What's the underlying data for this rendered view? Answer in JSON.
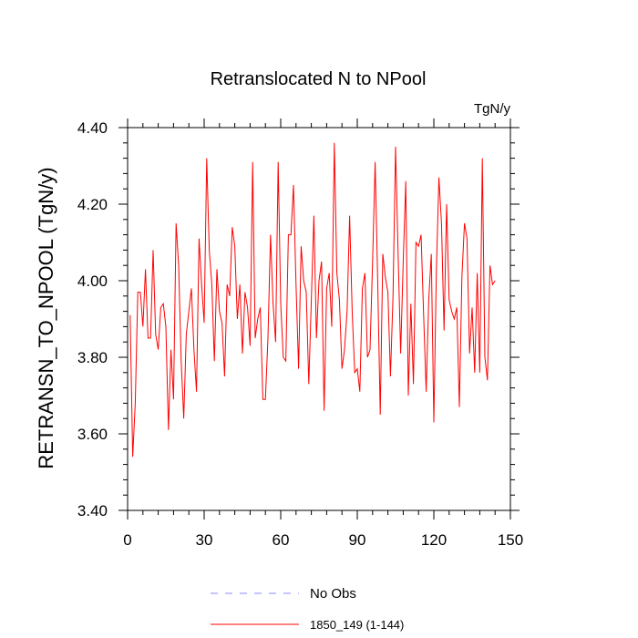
{
  "chart_data": {
    "type": "line",
    "title": "Retranslocated N to NPool",
    "units": "TgN/y",
    "ylabel": "RETRANSN_TO_NPOOL  (TgN/y)",
    "xlabel": "",
    "xlim": [
      0,
      150
    ],
    "ylim": [
      3.4,
      4.4
    ],
    "xticks": [
      0,
      30,
      60,
      90,
      120,
      150
    ],
    "xtick_labels": [
      "0",
      "30",
      "60",
      "90",
      "120",
      "150"
    ],
    "yticks": [
      3.4,
      3.6,
      3.8,
      4.0,
      4.2,
      4.4
    ],
    "ytick_labels": [
      "3.40",
      "3.60",
      "3.80",
      "4.00",
      "4.20",
      "4.40"
    ],
    "series": [
      {
        "name": "1850_149 (1-144)",
        "color": "#ff0000",
        "x": [
          1,
          2,
          3,
          4,
          5,
          6,
          7,
          8,
          9,
          10,
          11,
          12,
          13,
          14,
          15,
          16,
          17,
          18,
          19,
          20,
          21,
          22,
          23,
          24,
          25,
          26,
          27,
          28,
          29,
          30,
          31,
          32,
          33,
          34,
          35,
          36,
          37,
          38,
          39,
          40,
          41,
          42,
          43,
          44,
          45,
          46,
          47,
          48,
          49,
          50,
          51,
          52,
          53,
          54,
          55,
          56,
          57,
          58,
          59,
          60,
          61,
          62,
          63,
          64,
          65,
          66,
          67,
          68,
          69,
          70,
          71,
          72,
          73,
          74,
          75,
          76,
          77,
          78,
          79,
          80,
          81,
          82,
          83,
          84,
          85,
          86,
          87,
          88,
          89,
          90,
          91,
          92,
          93,
          94,
          95,
          96,
          97,
          98,
          99,
          100,
          101,
          102,
          103,
          104,
          105,
          106,
          107,
          108,
          109,
          110,
          111,
          112,
          113,
          114,
          115,
          116,
          117,
          118,
          119,
          120,
          121,
          122,
          123,
          124,
          125,
          126,
          127,
          128,
          129,
          130,
          131,
          132,
          133,
          134,
          135,
          136,
          137,
          138,
          139,
          140,
          141,
          142,
          143,
          144
        ],
        "values": [
          3.91,
          3.54,
          3.68,
          3.97,
          3.97,
          3.88,
          4.03,
          3.85,
          3.85,
          4.08,
          3.86,
          3.82,
          3.93,
          3.94,
          3.88,
          3.61,
          3.82,
          3.69,
          4.15,
          4.04,
          3.79,
          3.64,
          3.86,
          3.92,
          3.98,
          3.82,
          3.71,
          4.11,
          3.99,
          3.89,
          4.32,
          4.08,
          3.99,
          3.79,
          4.03,
          3.92,
          3.89,
          3.75,
          3.99,
          3.96,
          4.14,
          4.09,
          3.9,
          3.99,
          3.81,
          3.97,
          3.93,
          3.83,
          4.31,
          3.85,
          3.9,
          3.93,
          3.69,
          3.69,
          3.85,
          4.12,
          3.94,
          3.84,
          4.31,
          3.94,
          3.8,
          3.79,
          4.12,
          4.12,
          4.25,
          3.99,
          3.77,
          4.09,
          4.0,
          3.97,
          3.73,
          3.95,
          4.17,
          3.85,
          4.0,
          4.05,
          3.66,
          3.98,
          4.02,
          3.88,
          4.36,
          4.02,
          3.95,
          3.77,
          3.82,
          3.92,
          4.17,
          3.92,
          3.76,
          3.77,
          3.71,
          3.98,
          4.02,
          3.8,
          3.82,
          4.05,
          4.31,
          4.0,
          3.65,
          4.07,
          4.01,
          3.97,
          3.75,
          3.96,
          4.35,
          4.07,
          3.81,
          4.05,
          4.26,
          3.7,
          3.94,
          3.73,
          4.1,
          4.09,
          4.12,
          3.91,
          3.71,
          3.95,
          4.07,
          3.63,
          4.03,
          4.27,
          4.15,
          3.87,
          4.2,
          3.95,
          3.92,
          3.9,
          3.93,
          3.67,
          4.01,
          4.15,
          4.11,
          3.81,
          3.93,
          3.76,
          4.02,
          3.76,
          4.32,
          3.8,
          3.74,
          4.04,
          3.99,
          4.0
        ]
      }
    ],
    "legend": {
      "position": "bottom",
      "entries": [
        {
          "label": "No Obs",
          "style": "dashed",
          "color": "#8888ff"
        },
        {
          "label": "1850_149 (1-144)",
          "style": "solid",
          "color": "#ff0000"
        }
      ]
    }
  }
}
